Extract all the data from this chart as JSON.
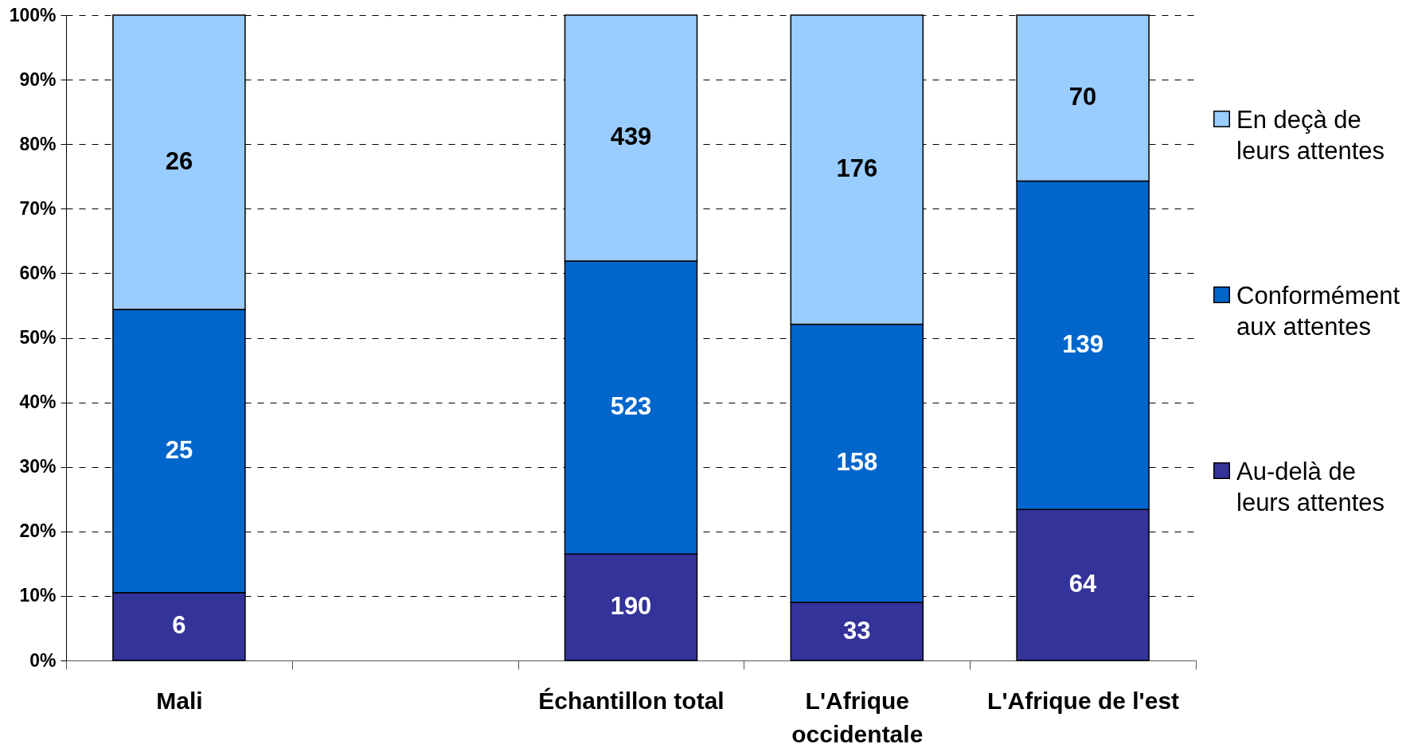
{
  "chart_data": {
    "type": "bar",
    "stacked": true,
    "categories": [
      "Mali",
      null,
      "Échantillon total",
      "L'Afrique occidentale",
      "L'Afrique de l'est"
    ],
    "series": [
      {
        "name": "Au-delà de leurs attentes",
        "color": "#333399",
        "values": [
          10.5,
          null,
          16.5,
          9.0,
          23.4
        ]
      },
      {
        "name": "Conformément aux attentes",
        "color": "#0066cc",
        "values": [
          43.9,
          null,
          45.4,
          43.1,
          50.9
        ]
      },
      {
        "name": "En deçà de leurs attentes",
        "color": "#99ccff",
        "values": [
          45.6,
          null,
          38.1,
          47.9,
          25.7
        ]
      }
    ],
    "annotations": [
      "6",
      "25",
      "26",
      "190",
      "523",
      "439",
      "33",
      "158",
      "176",
      "64",
      "139",
      "70"
    ],
    "ylim": [
      0,
      100
    ],
    "yticks": [
      {
        "value": 0,
        "label": "0%"
      },
      {
        "value": 10,
        "label": "10%"
      },
      {
        "value": 20,
        "label": "20%"
      },
      {
        "value": 30,
        "label": "30%"
      },
      {
        "value": 40,
        "label": "40%"
      },
      {
        "value": 50,
        "label": "50%"
      },
      {
        "value": 60,
        "label": "60%"
      },
      {
        "value": 70,
        "label": "70%"
      },
      {
        "value": 80,
        "label": "80%"
      },
      {
        "value": 90,
        "label": "90%"
      },
      {
        "value": 100,
        "label": "100%"
      }
    ],
    "grid": "y",
    "legend": "right"
  }
}
